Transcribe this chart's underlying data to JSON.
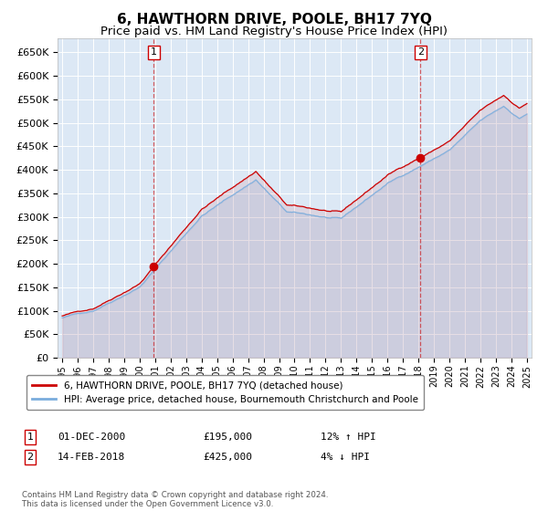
{
  "title": "6, HAWTHORN DRIVE, POOLE, BH17 7YQ",
  "subtitle": "Price paid vs. HM Land Registry's House Price Index (HPI)",
  "ylim": [
    0,
    680000
  ],
  "yticks": [
    0,
    50000,
    100000,
    150000,
    200000,
    250000,
    300000,
    350000,
    400000,
    450000,
    500000,
    550000,
    600000,
    650000
  ],
  "plot_bg": "#dce8f5",
  "sale1_date": 2000.917,
  "sale1_price": 195000,
  "sale2_date": 2018.12,
  "sale2_price": 425000,
  "legend_entry1": "6, HAWTHORN DRIVE, POOLE, BH17 7YQ (detached house)",
  "legend_entry2": "HPI: Average price, detached house, Bournemouth Christchurch and Poole",
  "footer": "Contains HM Land Registry data © Crown copyright and database right 2024.\nThis data is licensed under the Open Government Licence v3.0.",
  "line_color_red": "#cc0000",
  "line_color_blue": "#7aaddd",
  "title_fontsize": 11,
  "subtitle_fontsize": 9.5,
  "ann1_label": "1",
  "ann1_date": "01-DEC-2000",
  "ann1_price": "£195,000",
  "ann1_hpi": "12% ↑ HPI",
  "ann2_label": "2",
  "ann2_date": "14-FEB-2018",
  "ann2_price": "£425,000",
  "ann2_hpi": "4% ↓ HPI"
}
